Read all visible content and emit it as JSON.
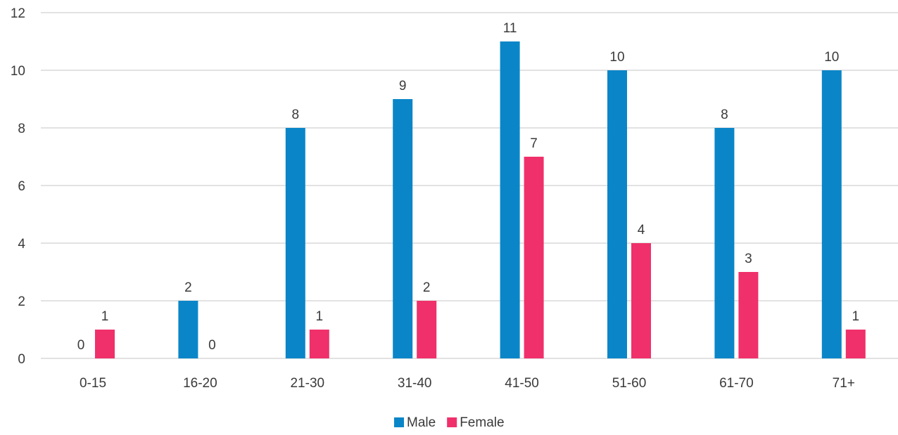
{
  "chart_data": {
    "type": "bar",
    "title": "",
    "xlabel": "",
    "ylabel": "",
    "ylim": [
      0,
      12
    ],
    "yticks": [
      0,
      2,
      4,
      6,
      8,
      10,
      12
    ],
    "grid": true,
    "legend_position": "bottom",
    "categories": [
      "0-15",
      "16-20",
      "21-30",
      "31-40",
      "41-50",
      "51-60",
      "61-70",
      "71+"
    ],
    "series": [
      {
        "name": "Male",
        "color": "#0a86c8",
        "values": [
          0,
          2,
          8,
          9,
          11,
          10,
          8,
          10
        ]
      },
      {
        "name": "Female",
        "color": "#f0306a",
        "values": [
          1,
          0,
          1,
          2,
          7,
          4,
          3,
          1
        ]
      }
    ]
  }
}
